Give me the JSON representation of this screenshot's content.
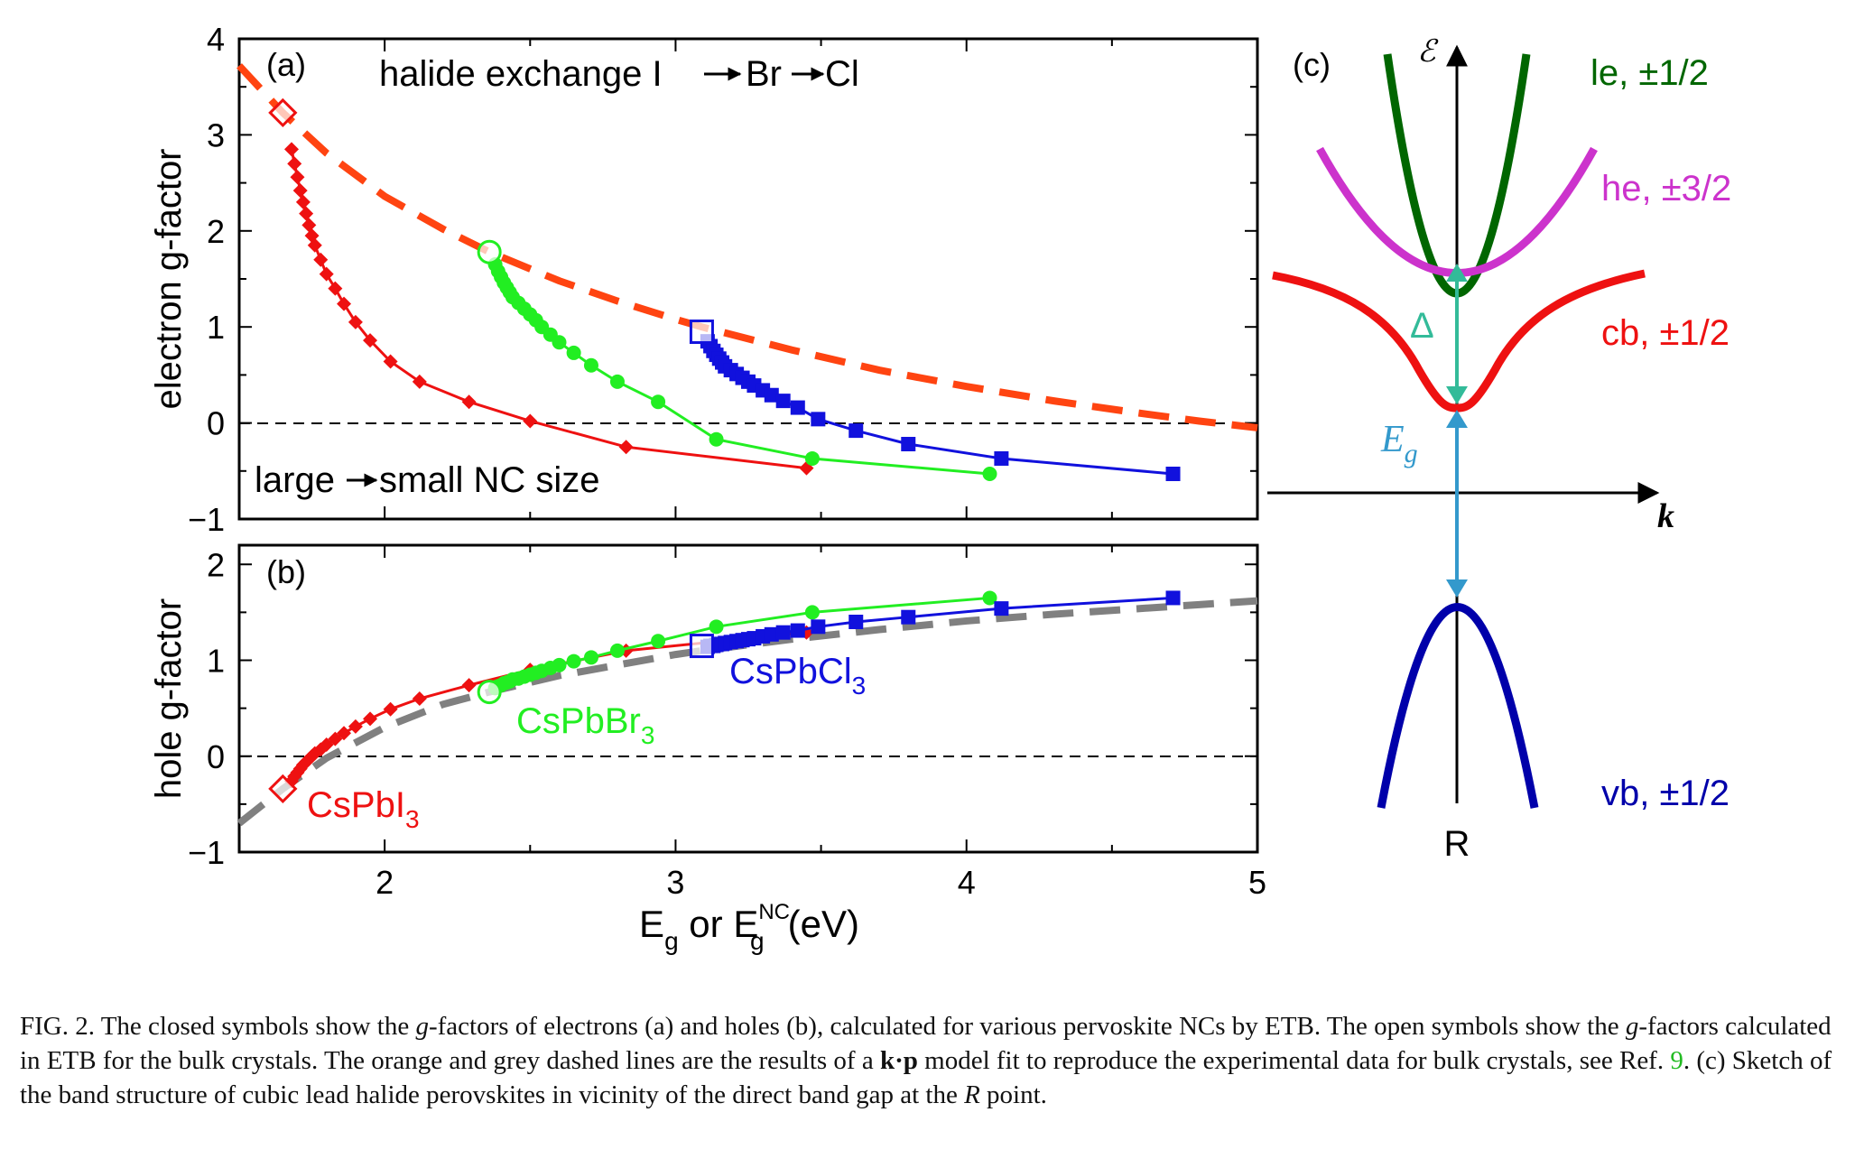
{
  "figure": {
    "panel_a": {
      "label": "(a)",
      "annotation_top": "halide exchange  I",
      "annotation_top_br": "Br",
      "annotation_top_cl": "Cl",
      "annotation_bottom_left": "large",
      "annotation_bottom_right": "small NC size",
      "ylabel": "electron g-factor"
    },
    "panel_b": {
      "label": "(b)",
      "ylabel": "hole g-factor",
      "label_cspbi": "CsPbI",
      "label_cspbbr": "CsPbBr",
      "label_cspbcl": "CsPbCl",
      "subscript": "3"
    },
    "xlabel_main": "E",
    "xlabel_sub": "g",
    "xlabel_or": " or E",
    "xlabel_sup": "NC",
    "xlabel_sub2": "g",
    "xlabel_unit": "(eV)",
    "panel_c": {
      "label": "(c)",
      "energy_axis": "ℰ",
      "k_axis": "k",
      "point": "R",
      "delta": "Δ",
      "eg": "E",
      "eg_sub": "g",
      "band_le": "le, ±1/2",
      "band_he": "he, ±3/2",
      "band_cb": "cb, ±1/2",
      "band_vb": "vb, ±1/2"
    },
    "colors": {
      "red": "#ee1111",
      "green": "#22ee22",
      "blue": "#1111dd",
      "orange_dash": "#ff4411",
      "grey_dash": "#808080",
      "le": "#006600",
      "he": "#cc33cc",
      "cb": "#ee1111",
      "vb": "#0000aa",
      "delta_arrow": "#33bb99",
      "eg_arrow": "#3399cc"
    }
  },
  "caption": {
    "fig": "FIG. 2.",
    "p1": "   The closed symbols show the ",
    "g1": "g",
    "p2": "-factors of electrons (a) and holes (b), calculated for various pervoskite NCs by ETB. The open symbols show the ",
    "g2": "g",
    "p3": "-factors calculated in ETB for the bulk crystals. The orange and grey dashed lines are the results of a ",
    "kp": "k·p",
    "p4": " model fit to reproduce the experimental data for bulk crystals, see Ref. ",
    "ref": "9",
    "p5": ". (c) Sketch of the band structure of cubic lead halide perovskites in vicinity of the direct band gap at the ",
    "R": "R",
    "p6": " point."
  },
  "chart_data": [
    {
      "type": "line",
      "panel": "(a)",
      "ylabel": "electron g-factor",
      "xlabel": "E_g or E_g^NC (eV)",
      "xlim": [
        1.5,
        5
      ],
      "ylim": [
        -1,
        4
      ],
      "xticks": [
        2,
        3,
        4,
        5
      ],
      "yticks": [
        -1,
        0,
        1,
        2,
        3,
        4
      ],
      "zero_line": true,
      "series": [
        {
          "name": "CsPbI3",
          "marker": "diamond",
          "color": "#ee1111",
          "x": [
            1.68,
            1.69,
            1.7,
            1.71,
            1.72,
            1.73,
            1.74,
            1.75,
            1.76,
            1.78,
            1.8,
            1.83,
            1.86,
            1.9,
            1.95,
            2.02,
            2.12,
            2.29,
            2.5,
            2.83,
            3.45
          ],
          "y": [
            2.85,
            2.7,
            2.56,
            2.42,
            2.3,
            2.18,
            2.06,
            1.95,
            1.85,
            1.7,
            1.55,
            1.4,
            1.24,
            1.05,
            0.86,
            0.64,
            0.43,
            0.22,
            0.02,
            -0.25,
            -0.47
          ]
        },
        {
          "name": "CsPbBr3",
          "marker": "circle",
          "color": "#22ee22",
          "x": [
            2.38,
            2.39,
            2.4,
            2.41,
            2.42,
            2.43,
            2.44,
            2.46,
            2.48,
            2.5,
            2.52,
            2.54,
            2.57,
            2.6,
            2.65,
            2.71,
            2.8,
            2.94,
            3.14,
            3.47,
            4.08
          ],
          "y": [
            1.65,
            1.58,
            1.52,
            1.46,
            1.41,
            1.36,
            1.31,
            1.25,
            1.19,
            1.13,
            1.07,
            1.0,
            0.92,
            0.84,
            0.73,
            0.6,
            0.43,
            0.22,
            -0.17,
            -0.37,
            -0.53
          ]
        },
        {
          "name": "CsPbCl3",
          "marker": "square",
          "color": "#1111dd",
          "x": [
            3.11,
            3.12,
            3.13,
            3.14,
            3.15,
            3.16,
            3.17,
            3.19,
            3.21,
            3.23,
            3.25,
            3.27,
            3.3,
            3.33,
            3.37,
            3.42,
            3.49,
            3.62,
            3.8,
            4.12,
            4.71
          ],
          "y": [
            0.85,
            0.8,
            0.75,
            0.71,
            0.67,
            0.63,
            0.59,
            0.55,
            0.51,
            0.47,
            0.43,
            0.39,
            0.34,
            0.29,
            0.23,
            0.16,
            0.04,
            -0.08,
            -0.22,
            -0.37,
            -0.53
          ]
        },
        {
          "name": "bulk",
          "marker": "open",
          "x": [
            1.65,
            2.36,
            3.09
          ],
          "y": [
            3.23,
            1.78,
            0.95
          ]
        },
        {
          "name": "k·p fit",
          "style": "dashed",
          "color": "#ff4411",
          "x": [
            1.5,
            1.65,
            1.8,
            2.0,
            2.2,
            2.36,
            2.6,
            2.8,
            3.0,
            3.09,
            3.4,
            3.7,
            4.0,
            4.3,
            4.6,
            4.8,
            5.0
          ],
          "y": [
            3.72,
            3.23,
            2.81,
            2.36,
            2.02,
            1.78,
            1.48,
            1.27,
            1.08,
            1.0,
            0.76,
            0.55,
            0.38,
            0.23,
            0.1,
            0.02,
            -0.05
          ]
        }
      ]
    },
    {
      "type": "line",
      "panel": "(b)",
      "ylabel": "hole g-factor",
      "xlabel": "E_g or E_g^NC (eV)",
      "xlim": [
        1.5,
        5
      ],
      "ylim": [
        -1,
        2.2
      ],
      "xticks": [
        2,
        3,
        4,
        5
      ],
      "yticks": [
        -1,
        0,
        1,
        2
      ],
      "zero_line": true,
      "series": [
        {
          "name": "CsPbI3",
          "marker": "diamond",
          "color": "#ee1111",
          "x": [
            1.68,
            1.69,
            1.7,
            1.71,
            1.72,
            1.73,
            1.74,
            1.75,
            1.76,
            1.78,
            1.8,
            1.83,
            1.86,
            1.9,
            1.95,
            2.02,
            2.12,
            2.29,
            2.5,
            2.83,
            3.45
          ],
          "y": [
            -0.26,
            -0.21,
            -0.17,
            -0.13,
            -0.09,
            -0.06,
            -0.03,
            0.0,
            0.03,
            0.07,
            0.12,
            0.18,
            0.24,
            0.31,
            0.39,
            0.49,
            0.6,
            0.74,
            0.9,
            1.1,
            1.29
          ]
        },
        {
          "name": "CsPbBr3",
          "marker": "circle",
          "color": "#22ee22",
          "x": [
            2.38,
            2.39,
            2.4,
            2.41,
            2.42,
            2.43,
            2.44,
            2.46,
            2.48,
            2.5,
            2.52,
            2.54,
            2.57,
            2.6,
            2.65,
            2.71,
            2.8,
            2.94,
            3.14,
            3.47,
            4.08
          ],
          "y": [
            0.71,
            0.73,
            0.74,
            0.76,
            0.77,
            0.78,
            0.8,
            0.81,
            0.83,
            0.85,
            0.87,
            0.89,
            0.92,
            0.95,
            0.99,
            1.03,
            1.1,
            1.2,
            1.35,
            1.5,
            1.65
          ]
        },
        {
          "name": "CsPbCl3",
          "marker": "square",
          "color": "#1111dd",
          "x": [
            3.11,
            3.12,
            3.13,
            3.14,
            3.15,
            3.16,
            3.17,
            3.19,
            3.21,
            3.23,
            3.25,
            3.27,
            3.3,
            3.33,
            3.37,
            3.42,
            3.49,
            3.62,
            3.8,
            4.12,
            4.71
          ],
          "y": [
            1.14,
            1.15,
            1.15,
            1.16,
            1.17,
            1.17,
            1.18,
            1.19,
            1.2,
            1.21,
            1.22,
            1.23,
            1.25,
            1.27,
            1.29,
            1.31,
            1.35,
            1.4,
            1.45,
            1.54,
            1.65
          ]
        },
        {
          "name": "bulk",
          "marker": "open",
          "x": [
            1.65,
            2.36,
            3.09
          ],
          "y": [
            -0.34,
            0.67,
            1.15
          ]
        },
        {
          "name": "k·p fit",
          "style": "dashed",
          "color": "#808080",
          "x": [
            1.5,
            1.65,
            1.8,
            2.0,
            2.2,
            2.36,
            2.6,
            2.8,
            3.0,
            3.09,
            3.4,
            3.7,
            4.0,
            4.3,
            4.6,
            4.8,
            5.0
          ],
          "y": [
            -0.7,
            -0.34,
            -0.02,
            0.3,
            0.54,
            0.67,
            0.84,
            0.95,
            1.06,
            1.1,
            1.22,
            1.32,
            1.41,
            1.48,
            1.54,
            1.58,
            1.62
          ]
        }
      ]
    }
  ]
}
